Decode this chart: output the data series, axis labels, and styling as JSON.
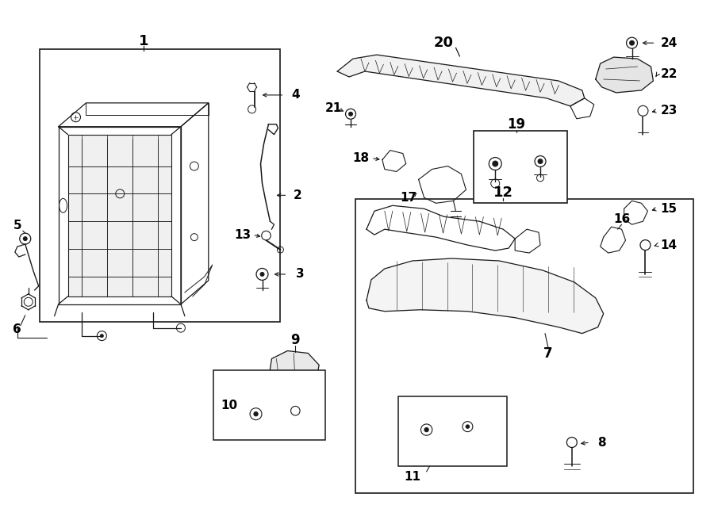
{
  "bg_color": "#ffffff",
  "lc": "#1a1a1a",
  "fig_w": 9.0,
  "fig_h": 6.61,
  "dpi": 100,
  "xlim": [
    0,
    9.0
  ],
  "ylim": [
    0,
    6.61
  ]
}
